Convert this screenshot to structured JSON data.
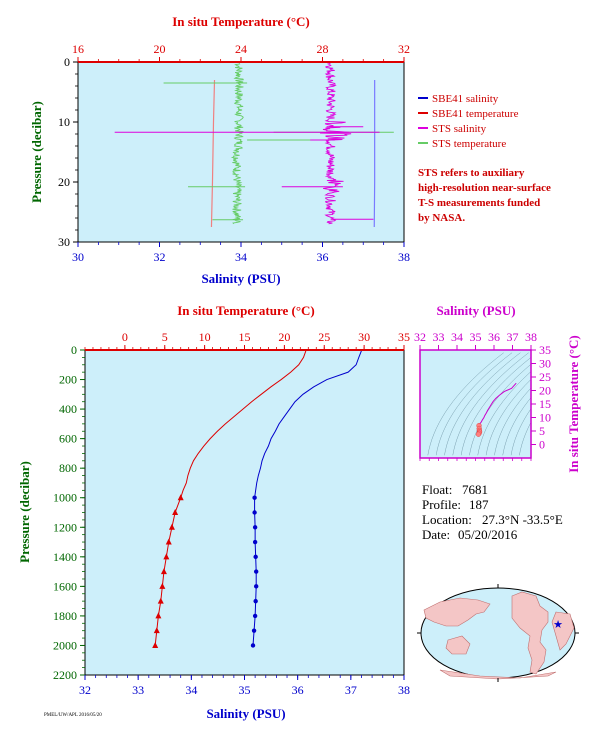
{
  "colors": {
    "bg": "#cdeffa",
    "salinity": "#0000cc",
    "temperature": "#dd0000",
    "sts_salinity": "#dd00dd",
    "sts_temperature": "#66cc66",
    "sbe_temp_top": "#f08080",
    "sbe_sal_top": "#7a7aff",
    "pressure_axis": "#006600",
    "ts_axis": "#cc00cc"
  },
  "info": {
    "float_label": "Float:",
    "float": "7681",
    "profile_label": "Profile:",
    "profile": "187",
    "location_label": "Location:",
    "location": "27.3°N  -33.5°E",
    "date_label": "Date:",
    "date": "05/20/2016"
  },
  "footer": "PMEL/UW/APL 2016/05/20",
  "chart_data": [
    {
      "id": "surface",
      "type": "line",
      "top_axis_label": "In situ Temperature (°C)",
      "bottom_axis_label": "Salinity (PSU)",
      "left_axis_label": "Pressure (decibar)",
      "temp_range": [
        16,
        32
      ],
      "temp_ticks": [
        "16",
        "20",
        "24",
        "28",
        "32"
      ],
      "sal_range": [
        30,
        38
      ],
      "sal_ticks": [
        "30",
        "32",
        "34",
        "36",
        "38"
      ],
      "p_range": [
        0,
        30
      ],
      "p_ticks": [
        "0",
        "10",
        "20",
        "30"
      ],
      "legend": [
        "SBE41 salinity",
        "SBE41 temperature",
        "STS salinity",
        "STS temperature"
      ],
      "note": [
        "STS refers to auxiliary",
        "high-resolution near-surface",
        "T-S measurements funded",
        "by NASA."
      ],
      "sbe_sal": {
        "x": [
          37.28,
          37.28,
          37.28,
          37.27
        ],
        "y": [
          3,
          10,
          20,
          27.5
        ]
      },
      "sbe_temp": {
        "x": [
          22.7,
          22.65,
          22.6,
          22.55
        ],
        "y": [
          3,
          10,
          20,
          27.5
        ]
      }
    },
    {
      "id": "profile",
      "type": "line",
      "top_axis_label": "In situ Temperature (°C)",
      "bottom_axis_label": "Salinity (PSU)",
      "left_axis_label": "Pressure (decibar)",
      "temp_range": [
        -5,
        35
      ],
      "temp_ticks": [
        "0",
        "5",
        "10",
        "15",
        "20",
        "25",
        "30",
        "35"
      ],
      "sal_range": [
        32,
        38
      ],
      "sal_ticks": [
        "32",
        "33",
        "34",
        "35",
        "36",
        "37",
        "38"
      ],
      "p_range": [
        0,
        2200
      ],
      "p_ticks": [
        "0",
        "200",
        "400",
        "600",
        "800",
        "1000",
        "1200",
        "1400",
        "1600",
        "1800",
        "2000",
        "2200"
      ],
      "temperature": {
        "p": [
          5,
          50,
          100,
          150,
          200,
          250,
          300,
          350,
          400,
          450,
          500,
          550,
          600,
          650,
          700,
          750,
          800,
          850,
          900,
          950,
          1000,
          1100,
          1200,
          1300,
          1400,
          1500,
          1600,
          1700,
          1800,
          1900,
          2000
        ],
        "t": [
          22.7,
          22.4,
          21.8,
          20.8,
          19.6,
          18.3,
          17.1,
          15.9,
          14.8,
          13.7,
          12.6,
          11.6,
          10.7,
          9.9,
          9.2,
          8.6,
          8.2,
          7.9,
          7.7,
          7.3,
          7.0,
          6.3,
          5.9,
          5.5,
          5.2,
          4.9,
          4.7,
          4.5,
          4.2,
          4.0,
          3.8
        ]
      },
      "salinity": {
        "p": [
          5,
          50,
          100,
          150,
          200,
          250,
          300,
          350,
          400,
          450,
          500,
          550,
          600,
          650,
          700,
          750,
          800,
          850,
          900,
          950,
          1000,
          1100,
          1200,
          1300,
          1400,
          1500,
          1600,
          1700,
          1800,
          1900,
          2000
        ],
        "s": [
          37.2,
          37.15,
          37.1,
          36.95,
          36.55,
          36.3,
          36.1,
          35.95,
          35.85,
          35.75,
          35.65,
          35.58,
          35.5,
          35.45,
          35.38,
          35.33,
          35.3,
          35.26,
          35.23,
          35.21,
          35.19,
          35.19,
          35.2,
          35.2,
          35.21,
          35.22,
          35.22,
          35.21,
          35.2,
          35.18,
          35.16
        ]
      },
      "marker_from_p": 1000
    },
    {
      "id": "ts",
      "type": "scatter",
      "top_axis_label": "Salinity (PSU)",
      "right_axis_label": "In situ Temperature (°C)",
      "sal_range": [
        32,
        38
      ],
      "sal_ticks": [
        "32",
        "33",
        "34",
        "35",
        "36",
        "37",
        "38"
      ],
      "temp_range": [
        -5,
        35
      ],
      "temp_ticks": [
        "0",
        "5",
        "10",
        "15",
        "20",
        "25",
        "30",
        "35"
      ],
      "points": {
        "s": [
          37.2,
          36.95,
          36.55,
          36.3,
          36.1,
          35.95,
          35.85,
          35.75,
          35.65,
          35.58,
          35.5,
          35.45,
          35.38,
          35.3,
          35.23,
          35.19,
          35.2,
          35.21,
          35.22,
          35.2,
          35.16
        ],
        "t": [
          22.7,
          20.8,
          19.6,
          18.3,
          17.1,
          15.9,
          14.8,
          13.7,
          12.6,
          11.6,
          10.7,
          9.9,
          9.2,
          8.2,
          7.7,
          7.0,
          5.9,
          5.2,
          4.7,
          4.2,
          3.8
        ]
      }
    }
  ]
}
